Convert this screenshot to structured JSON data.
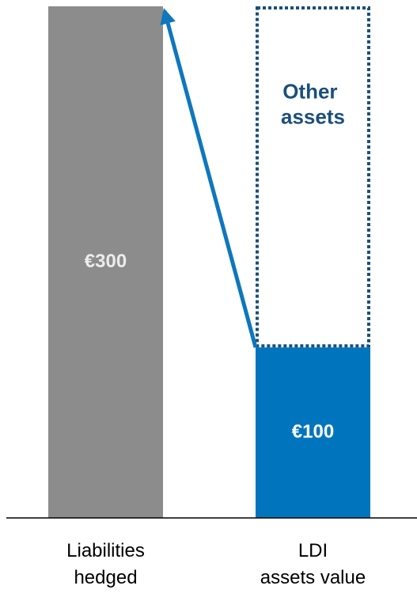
{
  "chart_data": {
    "type": "stacked_bar",
    "categories": [
      [
        "Liabilities",
        "hedged"
      ],
      [
        "LDI",
        "assets value"
      ]
    ],
    "series": [
      {
        "name": "Liabilities hedged",
        "color": "#8c8c8c",
        "values": [
          300,
          null
        ],
        "value_labels": [
          "€300",
          null
        ],
        "label_color": "#ececec"
      },
      {
        "name": "LDI assets",
        "color": "#0075be",
        "values": [
          null,
          100
        ],
        "value_labels": [
          null,
          "€100"
        ],
        "label_color": "#ffffff"
      },
      {
        "name": "Other assets",
        "color": "#1b4f7a",
        "values": [
          null,
          200
        ],
        "dotted": true,
        "show_name": true
      }
    ],
    "ylim": [
      0,
      300
    ],
    "arrow_color": "#0e77bd"
  }
}
